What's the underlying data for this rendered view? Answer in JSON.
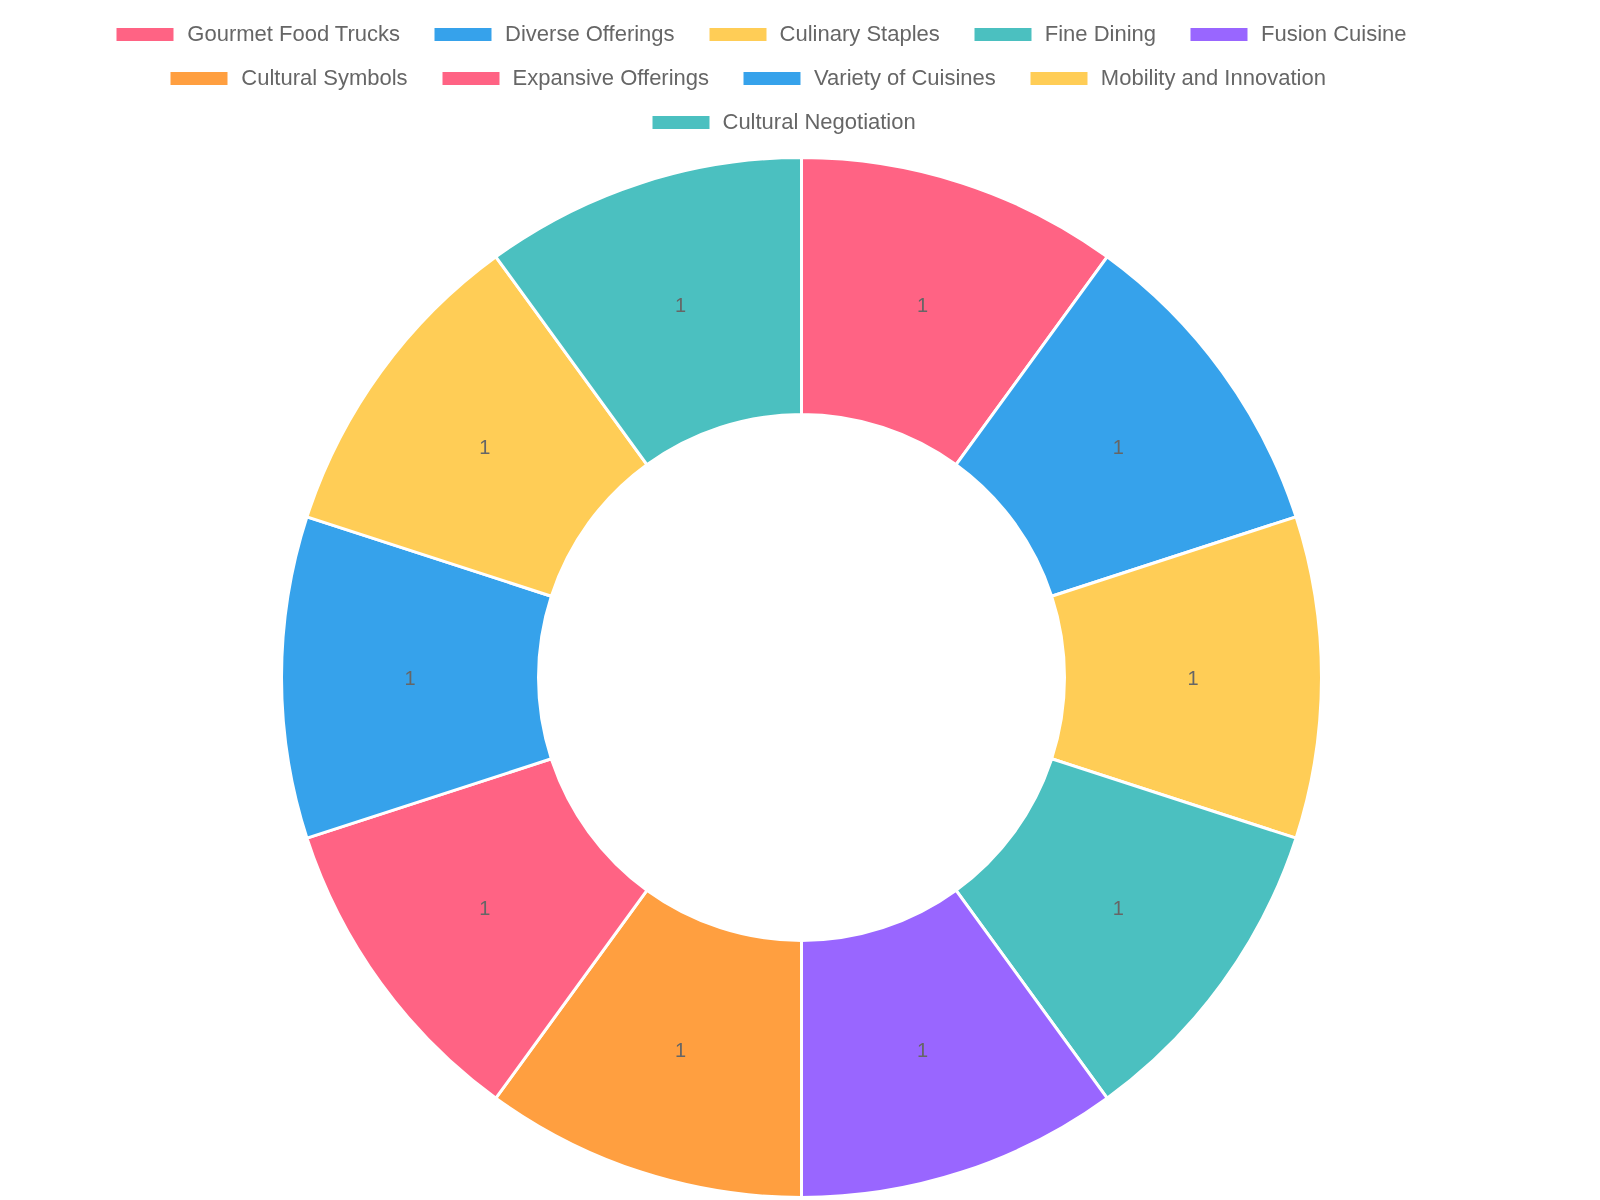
{
  "chart_data": {
    "type": "donut",
    "categories": [
      "Gourmet Food Trucks",
      "Diverse Offerings",
      "Culinary Staples",
      "Fine Dining",
      "Fusion Cuisine",
      "Cultural Symbols",
      "Expansive Offerings",
      "Variety of Cuisines",
      "Mobility and Innovation",
      "Cultural Negotiation"
    ],
    "values": [
      1,
      1,
      1,
      1,
      1,
      1,
      1,
      1,
      1,
      1
    ],
    "colors": [
      "#ff6384",
      "#36a2eb",
      "#ffcd56",
      "#4bc0c0",
      "#9966ff",
      "#ff9f40",
      "#ff6384",
      "#36a2eb",
      "#ffcd56",
      "#4bc0c0"
    ],
    "data_labels": true,
    "legend": "top"
  }
}
